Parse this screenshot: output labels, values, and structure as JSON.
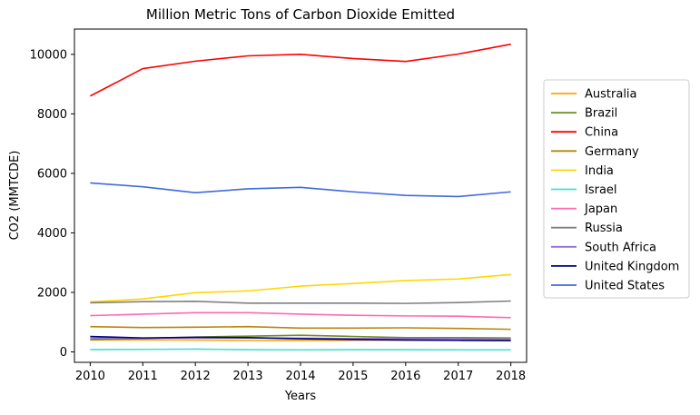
{
  "chart_data": {
    "type": "line",
    "title": "Million Metric Tons of Carbon Dioxide Emitted",
    "xlabel": "Years",
    "ylabel": "CO2 (MMTCDE)",
    "x": [
      2010,
      2011,
      2012,
      2013,
      2014,
      2015,
      2016,
      2017,
      2018
    ],
    "xlim": [
      2009.7,
      2018.3
    ],
    "ylim": [
      -350,
      10850
    ],
    "yticks": [
      0,
      2000,
      4000,
      6000,
      8000,
      10000
    ],
    "grid": false,
    "legend_position": "right",
    "series": [
      {
        "name": "Australia",
        "color": "#FFA500",
        "values": [
          400,
          405,
          400,
          390,
          385,
          390,
          395,
          395,
          385
        ]
      },
      {
        "name": "Brazil",
        "color": "#6B8E23",
        "values": [
          420,
          450,
          500,
          530,
          560,
          520,
          480,
          480,
          470
        ]
      },
      {
        "name": "China",
        "color": "#FF0000",
        "values": [
          8600,
          9520,
          9770,
          9950,
          10000,
          9860,
          9760,
          10010,
          10340
        ]
      },
      {
        "name": "Germany",
        "color": "#B8860B",
        "values": [
          850,
          820,
          830,
          850,
          800,
          800,
          810,
          790,
          760
        ]
      },
      {
        "name": "India",
        "color": "#FFD700",
        "values": [
          1680,
          1780,
          1990,
          2050,
          2210,
          2300,
          2400,
          2450,
          2600
        ]
      },
      {
        "name": "Israel",
        "color": "#40E0D0",
        "values": [
          80,
          85,
          95,
          75,
          70,
          75,
          75,
          70,
          70
        ]
      },
      {
        "name": "Japan",
        "color": "#FF69B4",
        "values": [
          1220,
          1270,
          1320,
          1320,
          1270,
          1230,
          1210,
          1200,
          1150
        ]
      },
      {
        "name": "Russia",
        "color": "#808080",
        "values": [
          1650,
          1690,
          1700,
          1640,
          1640,
          1640,
          1630,
          1660,
          1710
        ]
      },
      {
        "name": "South Africa",
        "color": "#9370DB",
        "values": [
          470,
          460,
          470,
          470,
          460,
          450,
          440,
          440,
          430
        ]
      },
      {
        "name": "United Kingdom",
        "color": "#000080",
        "values": [
          520,
          470,
          490,
          480,
          440,
          420,
          400,
          390,
          380
        ]
      },
      {
        "name": "United States",
        "color": "#4169E1",
        "values": [
          5680,
          5550,
          5350,
          5480,
          5530,
          5380,
          5260,
          5220,
          5380
        ]
      }
    ]
  }
}
